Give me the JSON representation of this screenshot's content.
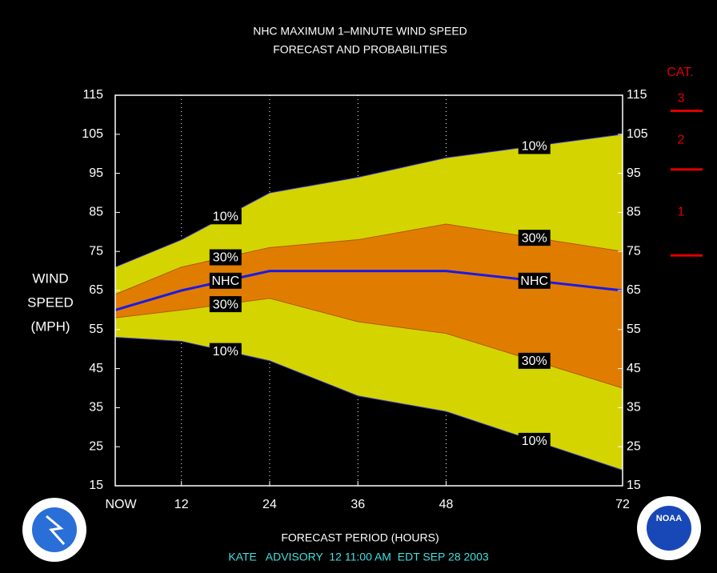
{
  "chart_data": {
    "type": "line",
    "title": "NHC MAXIMUM 1–MINUTE WIND SPEED",
    "subtitle": "FORECAST AND PROBABILITIES",
    "y_label": [
      "WIND",
      "SPEED",
      "(MPH)"
    ],
    "x_label": "FORECAST PERIOD (HOURS)",
    "footer": "KATE   ADVISORY  12 11:00 AM  EDT SEP 28 2003",
    "x": [
      3,
      12,
      24,
      36,
      48,
      72
    ],
    "xlim": [
      3,
      72
    ],
    "xticks": [
      {
        "value": 3,
        "label": "NOW"
      },
      12,
      24,
      36,
      48,
      72
    ],
    "ylim": [
      15,
      115
    ],
    "yticks": [
      15,
      25,
      35,
      45,
      55,
      65,
      75,
      85,
      95,
      105,
      115
    ],
    "y2lim": [
      15,
      115
    ],
    "y2ticks": [
      15,
      25,
      35,
      45,
      55,
      65,
      75,
      85,
      95,
      105,
      115
    ],
    "grid": true,
    "fills": [
      "#d4d400",
      "#e07c00"
    ],
    "series": [
      {
        "name": "10%",
        "color": "#3030c8",
        "values": [
          71,
          78,
          90,
          94,
          99,
          105
        ]
      },
      {
        "name": "30%",
        "color": "#b05a00",
        "values": [
          64,
          71,
          76,
          78,
          82,
          75
        ]
      },
      {
        "name": "NHC",
        "color": "#1a1ae6",
        "values": [
          60,
          65,
          70,
          70,
          70,
          65
        ]
      },
      {
        "name": "30%",
        "color": "#b05a00",
        "values": [
          58,
          60,
          63,
          57,
          54,
          40
        ]
      },
      {
        "name": "10%",
        "color": "#3030c8",
        "values": [
          53,
          52,
          47,
          38,
          34,
          19
        ]
      }
    ],
    "category_scale": {
      "title": "CAT.",
      "color": "#e00000",
      "labels": [
        "3",
        "2",
        "1"
      ],
      "thresholds": [
        111,
        96,
        74
      ]
    },
    "logo_text": "NOAA"
  }
}
